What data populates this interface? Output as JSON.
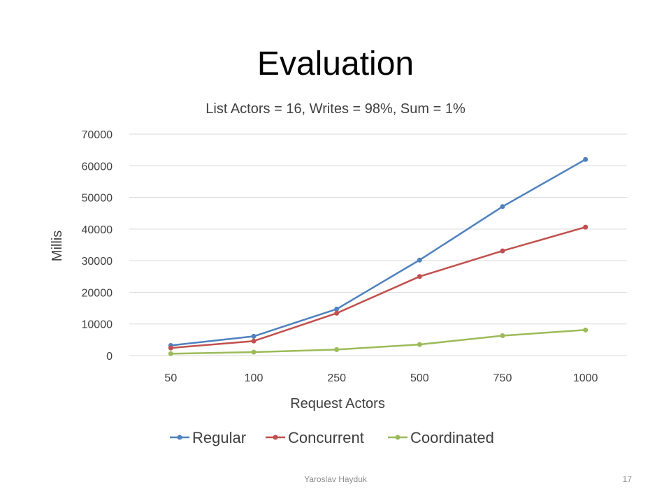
{
  "slide": {
    "title": "Evaluation",
    "author": "Yaroslav Hayduk",
    "page_number": "17"
  },
  "colors": {
    "regular": "#4f81bd",
    "concurrent": "#c0504d",
    "coordinated": "#9bbb59",
    "grid": "#d9d9d9",
    "text": "#404040"
  },
  "chart_data": {
    "type": "line",
    "title": "List Actors = 16, Writes = 98%, Sum = 1%",
    "xlabel": "Request Actors",
    "ylabel": "Millis",
    "categories": [
      "50",
      "100",
      "250",
      "500",
      "750",
      "1000"
    ],
    "ylim": [
      0,
      70000
    ],
    "yticks": [
      0,
      10000,
      20000,
      30000,
      40000,
      50000,
      60000,
      70000
    ],
    "grid": true,
    "legend": "bottom",
    "series": [
      {
        "name": "Regular",
        "color": "#4f81bd",
        "values": [
          3200,
          6100,
          14700,
          30200,
          47100,
          62000
        ]
      },
      {
        "name": "Concurrent",
        "color": "#c0504d",
        "values": [
          2400,
          4600,
          13400,
          25000,
          33100,
          40600
        ]
      },
      {
        "name": "Coordinated",
        "color": "#9bbb59",
        "values": [
          600,
          1100,
          1900,
          3500,
          6300,
          8100
        ]
      }
    ]
  }
}
